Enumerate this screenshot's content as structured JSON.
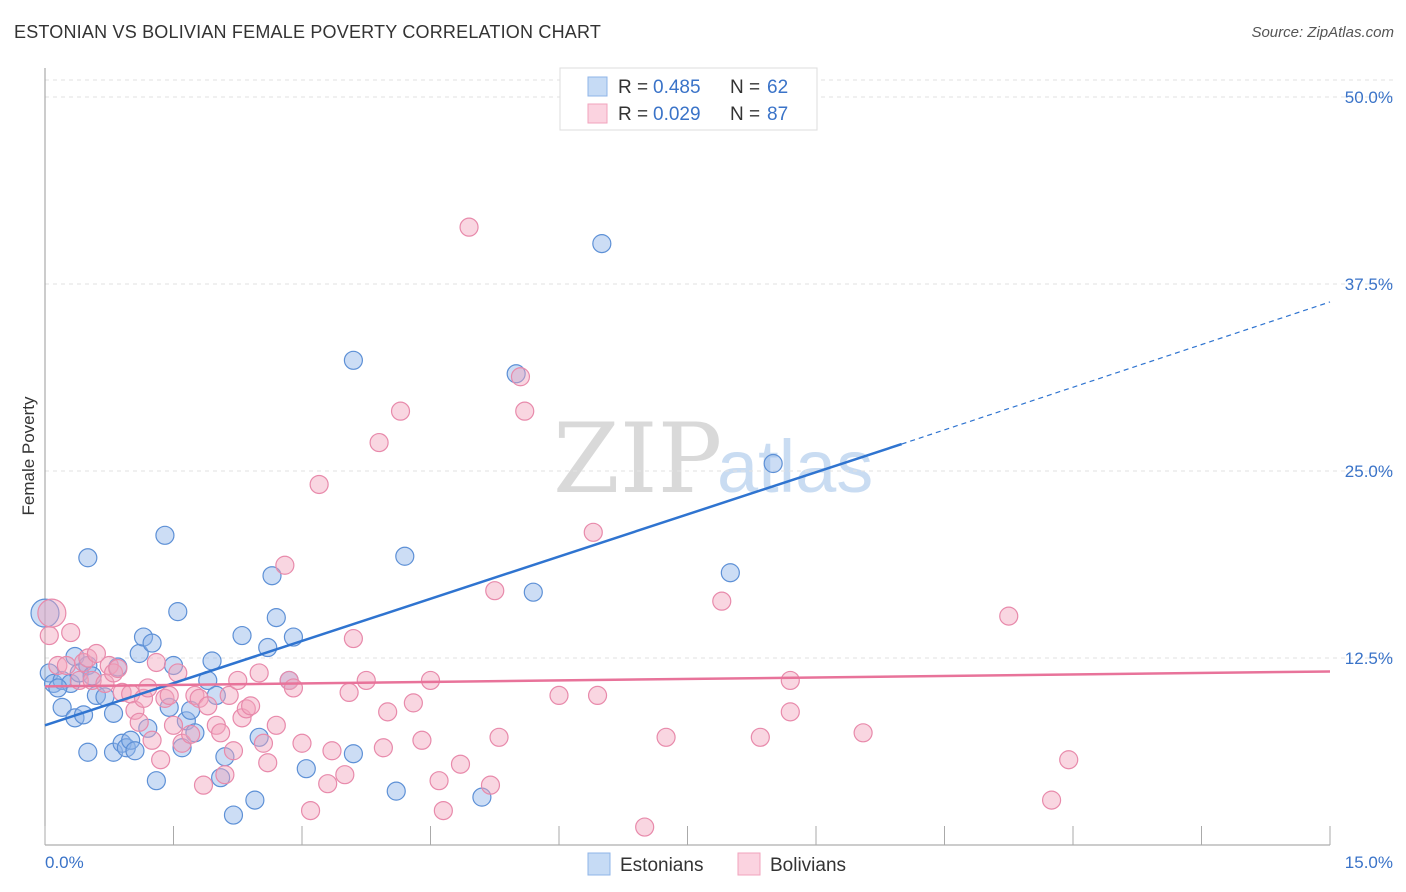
{
  "title": "ESTONIAN VS BOLIVIAN FEMALE POVERTY CORRELATION CHART",
  "source": "Source: ZipAtlas.com",
  "watermark": {
    "zip": "ZIP",
    "atlas": "atlas"
  },
  "colors": {
    "estonians": "#8fb4e8",
    "bolivians": "#f2a3bd",
    "estonians_line": "#2f74d0",
    "bolivians_line": "#e8739a",
    "axis_text": "#3a73c8"
  },
  "legend": {
    "rows": [
      {
        "r_label": "R = ",
        "r_value": "0.485",
        "n_label": "N = ",
        "n_value": "62"
      },
      {
        "r_label": "R = ",
        "r_value": "0.029",
        "n_label": "N = ",
        "n_value": "87"
      }
    ]
  },
  "bottom_legend": [
    "Estonians",
    "Bolivians"
  ],
  "chart_data": {
    "type": "scatter",
    "title": "ESTONIAN VS BOLIVIAN FEMALE POVERTY CORRELATION CHART",
    "xlabel": "",
    "ylabel": "Female Poverty",
    "xlim": [
      0,
      15
    ],
    "ylim": [
      0,
      50
    ],
    "x_tick_labels": [
      "0.0%",
      "15.0%"
    ],
    "y_ticks": [
      12.5,
      25.0,
      37.5,
      50.0
    ],
    "y_tick_labels": [
      "12.5%",
      "25.0%",
      "37.5%",
      "50.0%"
    ],
    "grid": "horizontal dashed",
    "legend_position": "top-center",
    "series": [
      {
        "name": "Estonians",
        "r": 0.485,
        "n": 62,
        "trend": {
          "x0": 0,
          "y0": 8.0,
          "x1": 10.0,
          "y1": 26.8,
          "dashed_to_x": 15.0,
          "dashed_to_y": 36.3
        },
        "points": [
          [
            0.0,
            15.5
          ],
          [
            0.05,
            11.5
          ],
          [
            0.1,
            10.8
          ],
          [
            0.2,
            11.0
          ],
          [
            0.3,
            10.8
          ],
          [
            0.35,
            12.6
          ],
          [
            0.4,
            11.5
          ],
          [
            0.2,
            9.2
          ],
          [
            0.35,
            8.5
          ],
          [
            0.45,
            8.7
          ],
          [
            0.5,
            12.0
          ],
          [
            0.55,
            11.3
          ],
          [
            0.6,
            10.0
          ],
          [
            0.7,
            9.9
          ],
          [
            0.8,
            8.8
          ],
          [
            0.85,
            11.9
          ],
          [
            0.5,
            6.2
          ],
          [
            0.8,
            6.2
          ],
          [
            0.9,
            6.8
          ],
          [
            0.95,
            6.5
          ],
          [
            1.0,
            7.0
          ],
          [
            1.05,
            6.3
          ],
          [
            1.1,
            12.8
          ],
          [
            1.15,
            13.9
          ],
          [
            1.2,
            7.8
          ],
          [
            1.25,
            13.5
          ],
          [
            1.3,
            4.3
          ],
          [
            1.4,
            20.7
          ],
          [
            1.5,
            12.0
          ],
          [
            1.55,
            15.6
          ],
          [
            1.6,
            6.5
          ],
          [
            1.65,
            8.3
          ],
          [
            1.7,
            9.0
          ],
          [
            1.75,
            7.5
          ],
          [
            1.9,
            11.0
          ],
          [
            1.95,
            12.3
          ],
          [
            2.0,
            10.0
          ],
          [
            2.05,
            4.5
          ],
          [
            2.1,
            5.9
          ],
          [
            2.2,
            2.0
          ],
          [
            2.3,
            14.0
          ],
          [
            2.45,
            3.0
          ],
          [
            2.5,
            7.2
          ],
          [
            2.6,
            13.2
          ],
          [
            2.65,
            18.0
          ],
          [
            2.7,
            15.2
          ],
          [
            2.85,
            11.0
          ],
          [
            2.9,
            13.9
          ],
          [
            3.05,
            5.1
          ],
          [
            3.6,
            32.4
          ],
          [
            3.6,
            6.1
          ],
          [
            4.1,
            3.6
          ],
          [
            4.2,
            19.3
          ],
          [
            5.1,
            3.2
          ],
          [
            5.5,
            31.5
          ],
          [
            5.7,
            16.9
          ],
          [
            6.5,
            40.2
          ],
          [
            0.5,
            19.2
          ],
          [
            8.0,
            18.2
          ],
          [
            8.5,
            25.5
          ],
          [
            1.45,
            9.2
          ],
          [
            0.15,
            10.5
          ]
        ]
      },
      {
        "name": "Bolivians",
        "r": 0.029,
        "n": 87,
        "trend": {
          "x0": 0,
          "y0": 10.6,
          "x1": 15.0,
          "y1": 11.6
        },
        "points": [
          [
            0.05,
            14.0
          ],
          [
            0.15,
            12.0
          ],
          [
            0.25,
            12.0
          ],
          [
            0.3,
            14.2
          ],
          [
            0.4,
            11.0
          ],
          [
            0.45,
            12.2
          ],
          [
            0.5,
            12.5
          ],
          [
            0.55,
            11.0
          ],
          [
            0.6,
            12.8
          ],
          [
            0.7,
            10.8
          ],
          [
            0.75,
            12.0
          ],
          [
            0.8,
            11.5
          ],
          [
            0.85,
            11.8
          ],
          [
            0.9,
            10.2
          ],
          [
            1.0,
            10.1
          ],
          [
            1.05,
            9.0
          ],
          [
            1.1,
            8.2
          ],
          [
            1.15,
            9.8
          ],
          [
            1.2,
            10.5
          ],
          [
            1.25,
            7.0
          ],
          [
            1.3,
            12.2
          ],
          [
            1.35,
            5.7
          ],
          [
            1.4,
            9.8
          ],
          [
            1.45,
            10.0
          ],
          [
            1.5,
            8.0
          ],
          [
            1.55,
            11.5
          ],
          [
            1.6,
            6.8
          ],
          [
            1.7,
            7.4
          ],
          [
            1.75,
            10.0
          ],
          [
            1.8,
            9.8
          ],
          [
            1.85,
            4.0
          ],
          [
            1.9,
            9.3
          ],
          [
            2.0,
            8.0
          ],
          [
            2.05,
            7.5
          ],
          [
            2.1,
            4.7
          ],
          [
            2.15,
            10.0
          ],
          [
            2.2,
            6.3
          ],
          [
            2.25,
            11.0
          ],
          [
            2.3,
            8.5
          ],
          [
            2.35,
            9.1
          ],
          [
            2.4,
            9.3
          ],
          [
            2.5,
            11.5
          ],
          [
            2.55,
            6.8
          ],
          [
            2.6,
            5.5
          ],
          [
            2.7,
            8.0
          ],
          [
            2.8,
            18.7
          ],
          [
            2.85,
            11.0
          ],
          [
            2.9,
            10.5
          ],
          [
            3.0,
            6.8
          ],
          [
            3.1,
            2.3
          ],
          [
            3.2,
            24.1
          ],
          [
            3.3,
            4.1
          ],
          [
            3.35,
            6.3
          ],
          [
            3.5,
            4.7
          ],
          [
            3.55,
            10.2
          ],
          [
            3.6,
            13.8
          ],
          [
            3.75,
            11.0
          ],
          [
            3.9,
            26.9
          ],
          [
            3.95,
            6.5
          ],
          [
            4.0,
            8.9
          ],
          [
            4.15,
            29.0
          ],
          [
            4.3,
            9.5
          ],
          [
            4.4,
            7.0
          ],
          [
            4.5,
            11.0
          ],
          [
            4.6,
            4.3
          ],
          [
            4.65,
            2.3
          ],
          [
            4.85,
            5.4
          ],
          [
            4.95,
            41.3
          ],
          [
            5.2,
            4.0
          ],
          [
            5.25,
            17.0
          ],
          [
            5.3,
            7.2
          ],
          [
            5.55,
            31.3
          ],
          [
            5.6,
            29.0
          ],
          [
            6.0,
            10.0
          ],
          [
            6.4,
            20.9
          ],
          [
            6.45,
            10.0
          ],
          [
            7.0,
            1.2
          ],
          [
            7.25,
            7.2
          ],
          [
            7.9,
            16.3
          ],
          [
            8.35,
            7.2
          ],
          [
            8.7,
            11.0
          ],
          [
            8.7,
            8.9
          ],
          [
            9.55,
            7.5
          ],
          [
            11.25,
            15.3
          ],
          [
            11.95,
            5.7
          ],
          [
            11.75,
            3.0
          ],
          [
            0.08,
            15.5
          ]
        ]
      }
    ]
  }
}
